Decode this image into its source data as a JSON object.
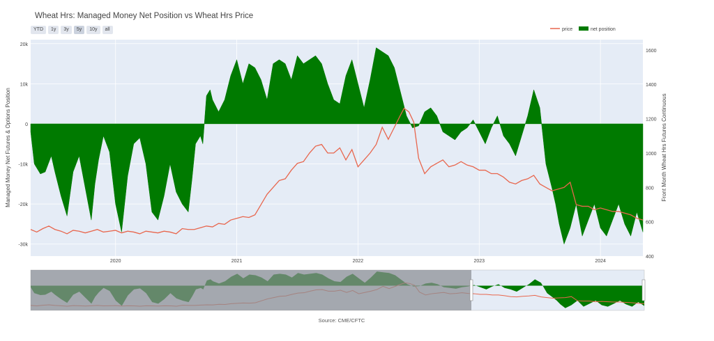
{
  "title": "Wheat Hrs: Managed Money Net Position vs Wheat Hrs Price",
  "range_buttons": [
    "YTD",
    "1y",
    "3y",
    "5y",
    "10y",
    "all"
  ],
  "active_range": "5y",
  "legend": {
    "price": "price",
    "net_position": "net position"
  },
  "source": "Source: CME/CFTC",
  "colors": {
    "price": "#e8664d",
    "net_position": "#007a00",
    "plot_bg": "#e5ecf6",
    "mini_shade": "#8a8d93"
  },
  "chart_data": {
    "type": "area",
    "title": "Wheat Hrs: Managed Money Net Position vs Wheat Hrs Price",
    "xlabel": "",
    "ylabel": "Managed Money Net Futures & Options Position",
    "y2label": "Front Month Wheat Hrs Futures Continuous",
    "xlim": [
      2019.3,
      2024.35
    ],
    "ylim": [
      -33000,
      21000
    ],
    "y2lim": [
      400,
      1660
    ],
    "x_ticks": [
      "2020",
      "2021",
      "2022",
      "2023",
      "2024"
    ],
    "y_ticks": [
      "20k",
      "10k",
      "0",
      "-10k",
      "-20k",
      "-30k"
    ],
    "y2_ticks": [
      "1600",
      "1400",
      "1200",
      "1000",
      "800",
      "600",
      "400"
    ],
    "legend_position": "top-right",
    "series": [
      {
        "name": "net position",
        "axis": "left",
        "x": [
          2019.3,
          2019.33,
          2019.38,
          2019.42,
          2019.47,
          2019.5,
          2019.55,
          2019.6,
          2019.65,
          2019.7,
          2019.75,
          2019.8,
          2019.83,
          2019.86,
          2019.9,
          2019.95,
          2020.0,
          2020.05,
          2020.1,
          2020.15,
          2020.2,
          2020.25,
          2020.3,
          2020.35,
          2020.4,
          2020.45,
          2020.5,
          2020.55,
          2020.6,
          2020.63,
          2020.66,
          2020.7,
          2020.72,
          2020.75,
          2020.78,
          2020.8,
          2020.85,
          2020.9,
          2020.95,
          2021.0,
          2021.05,
          2021.1,
          2021.15,
          2021.2,
          2021.25,
          2021.3,
          2021.35,
          2021.4,
          2021.45,
          2021.5,
          2021.55,
          2021.6,
          2021.65,
          2021.7,
          2021.75,
          2021.8,
          2021.85,
          2021.9,
          2021.95,
          2022.0,
          2022.05,
          2022.1,
          2022.15,
          2022.2,
          2022.25,
          2022.3,
          2022.35,
          2022.4,
          2022.45,
          2022.5,
          2022.55,
          2022.6,
          2022.65,
          2022.7,
          2022.75,
          2022.8,
          2022.85,
          2022.9,
          2022.95,
          2023.0,
          2023.05,
          2023.1,
          2023.15,
          2023.2,
          2023.25,
          2023.3,
          2023.35,
          2023.4,
          2023.45,
          2023.5,
          2023.55,
          2023.6,
          2023.63,
          2023.66,
          2023.7,
          2023.75,
          2023.8,
          2023.85,
          2023.9,
          2023.95,
          2024.0,
          2024.05,
          2024.1,
          2024.15,
          2024.2,
          2024.25,
          2024.3,
          2024.35
        ],
        "values": [
          -2000,
          -10000,
          -12500,
          -12000,
          -8000,
          -12000,
          -18000,
          -23000,
          -12000,
          -8000,
          -16000,
          -24000,
          -15000,
          -9000,
          -3000,
          -7000,
          -20000,
          -27000,
          -13000,
          -5000,
          -3500,
          -10000,
          -22000,
          -24000,
          -18000,
          -10000,
          -17000,
          -20000,
          -22000,
          -14000,
          -5000,
          -3000,
          -5000,
          7000,
          8500,
          6000,
          3000,
          6000,
          12000,
          16000,
          10000,
          15000,
          14000,
          11000,
          6000,
          15000,
          16000,
          15000,
          11000,
          17000,
          15000,
          16000,
          17000,
          15000,
          10000,
          6000,
          5000,
          12000,
          16000,
          10000,
          4000,
          11000,
          19000,
          18000,
          17000,
          14000,
          8000,
          2000,
          -1000,
          -500,
          3000,
          4000,
          2000,
          -2000,
          -3000,
          -4000,
          -2000,
          -1000,
          1000,
          -2000,
          -5000,
          -1000,
          2000,
          -3000,
          -5000,
          -8000,
          -3000,
          2000,
          8500,
          4000,
          -10000,
          -16000,
          -20000,
          -25000,
          -30000,
          -26000,
          -20000,
          -28000,
          -24000,
          -20000,
          -26000,
          -28000,
          -24000,
          -20000,
          -25000,
          -28000,
          -22000,
          -27000
        ]
      },
      {
        "name": "price",
        "axis": "right",
        "x": [
          2019.3,
          2019.35,
          2019.4,
          2019.45,
          2019.5,
          2019.55,
          2019.6,
          2019.65,
          2019.7,
          2019.75,
          2019.8,
          2019.85,
          2019.9,
          2019.95,
          2020.0,
          2020.05,
          2020.1,
          2020.15,
          2020.2,
          2020.25,
          2020.3,
          2020.35,
          2020.4,
          2020.45,
          2020.5,
          2020.55,
          2020.6,
          2020.65,
          2020.7,
          2020.75,
          2020.8,
          2020.85,
          2020.9,
          2020.95,
          2021.0,
          2021.05,
          2021.1,
          2021.15,
          2021.2,
          2021.25,
          2021.3,
          2021.35,
          2021.4,
          2021.45,
          2021.5,
          2021.55,
          2021.6,
          2021.65,
          2021.7,
          2021.75,
          2021.8,
          2021.85,
          2021.9,
          2021.95,
          2022.0,
          2022.05,
          2022.1,
          2022.15,
          2022.2,
          2022.25,
          2022.3,
          2022.35,
          2022.38,
          2022.42,
          2022.46,
          2022.5,
          2022.55,
          2022.6,
          2022.65,
          2022.7,
          2022.75,
          2022.8,
          2022.85,
          2022.9,
          2022.95,
          2023.0,
          2023.05,
          2023.1,
          2023.15,
          2023.2,
          2023.25,
          2023.3,
          2023.35,
          2023.4,
          2023.45,
          2023.5,
          2023.55,
          2023.6,
          2023.65,
          2023.7,
          2023.75,
          2023.8,
          2023.85,
          2023.9,
          2023.95,
          2024.0,
          2024.05,
          2024.1,
          2024.15,
          2024.2,
          2024.25,
          2024.3,
          2024.35
        ],
        "values": [
          555,
          540,
          560,
          575,
          555,
          545,
          530,
          550,
          545,
          535,
          545,
          555,
          540,
          545,
          550,
          535,
          545,
          540,
          530,
          545,
          540,
          535,
          545,
          540,
          530,
          560,
          555,
          555,
          565,
          575,
          570,
          590,
          585,
          610,
          620,
          630,
          625,
          640,
          700,
          760,
          800,
          840,
          850,
          900,
          940,
          950,
          1000,
          1040,
          1050,
          1000,
          1000,
          1030,
          960,
          1020,
          920,
          960,
          1000,
          1050,
          1150,
          1080,
          1150,
          1220,
          1260,
          1240,
          1180,
          970,
          880,
          920,
          940,
          960,
          920,
          930,
          950,
          930,
          920,
          900,
          900,
          880,
          880,
          860,
          830,
          820,
          840,
          850,
          870,
          820,
          800,
          780,
          790,
          800,
          830,
          700,
          690,
          690,
          670,
          680,
          670,
          660,
          660,
          650,
          640,
          620,
          610
        ]
      }
    ]
  }
}
